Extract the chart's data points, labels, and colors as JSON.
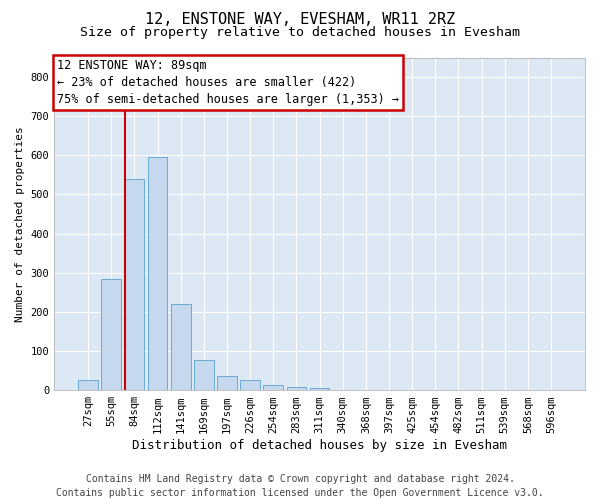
{
  "title": "12, ENSTONE WAY, EVESHAM, WR11 2RZ",
  "subtitle": "Size of property relative to detached houses in Evesham",
  "xlabel": "Distribution of detached houses by size in Evesham",
  "ylabel": "Number of detached properties",
  "categories": [
    "27sqm",
    "55sqm",
    "84sqm",
    "112sqm",
    "141sqm",
    "169sqm",
    "197sqm",
    "226sqm",
    "254sqm",
    "283sqm",
    "311sqm",
    "340sqm",
    "368sqm",
    "397sqm",
    "425sqm",
    "454sqm",
    "482sqm",
    "511sqm",
    "539sqm",
    "568sqm",
    "596sqm"
  ],
  "values": [
    25,
    285,
    540,
    595,
    220,
    78,
    35,
    25,
    12,
    7,
    5,
    0,
    0,
    0,
    0,
    0,
    0,
    0,
    0,
    0,
    0
  ],
  "bar_color": "#c5d8ee",
  "bar_edgecolor": "#6aabd2",
  "vline_color": "#cc0000",
  "vline_index": 2,
  "annotation_text": "12 ENSTONE WAY: 89sqm\n← 23% of detached houses are smaller (422)\n75% of semi-detached houses are larger (1,353) →",
  "annotation_box_facecolor": "#ffffff",
  "annotation_box_edgecolor": "#cc0000",
  "ylim": [
    0,
    850
  ],
  "yticks": [
    0,
    100,
    200,
    300,
    400,
    500,
    600,
    700,
    800
  ],
  "plot_bg_color": "#dce9f5",
  "fig_bg_color": "#ffffff",
  "footer": "Contains HM Land Registry data © Crown copyright and database right 2024.\nContains public sector information licensed under the Open Government Licence v3.0.",
  "title_fontsize": 11,
  "subtitle_fontsize": 9.5,
  "ylabel_fontsize": 8,
  "xlabel_fontsize": 9,
  "tick_fontsize": 7.5,
  "footer_fontsize": 7,
  "annotation_fontsize": 8.5
}
